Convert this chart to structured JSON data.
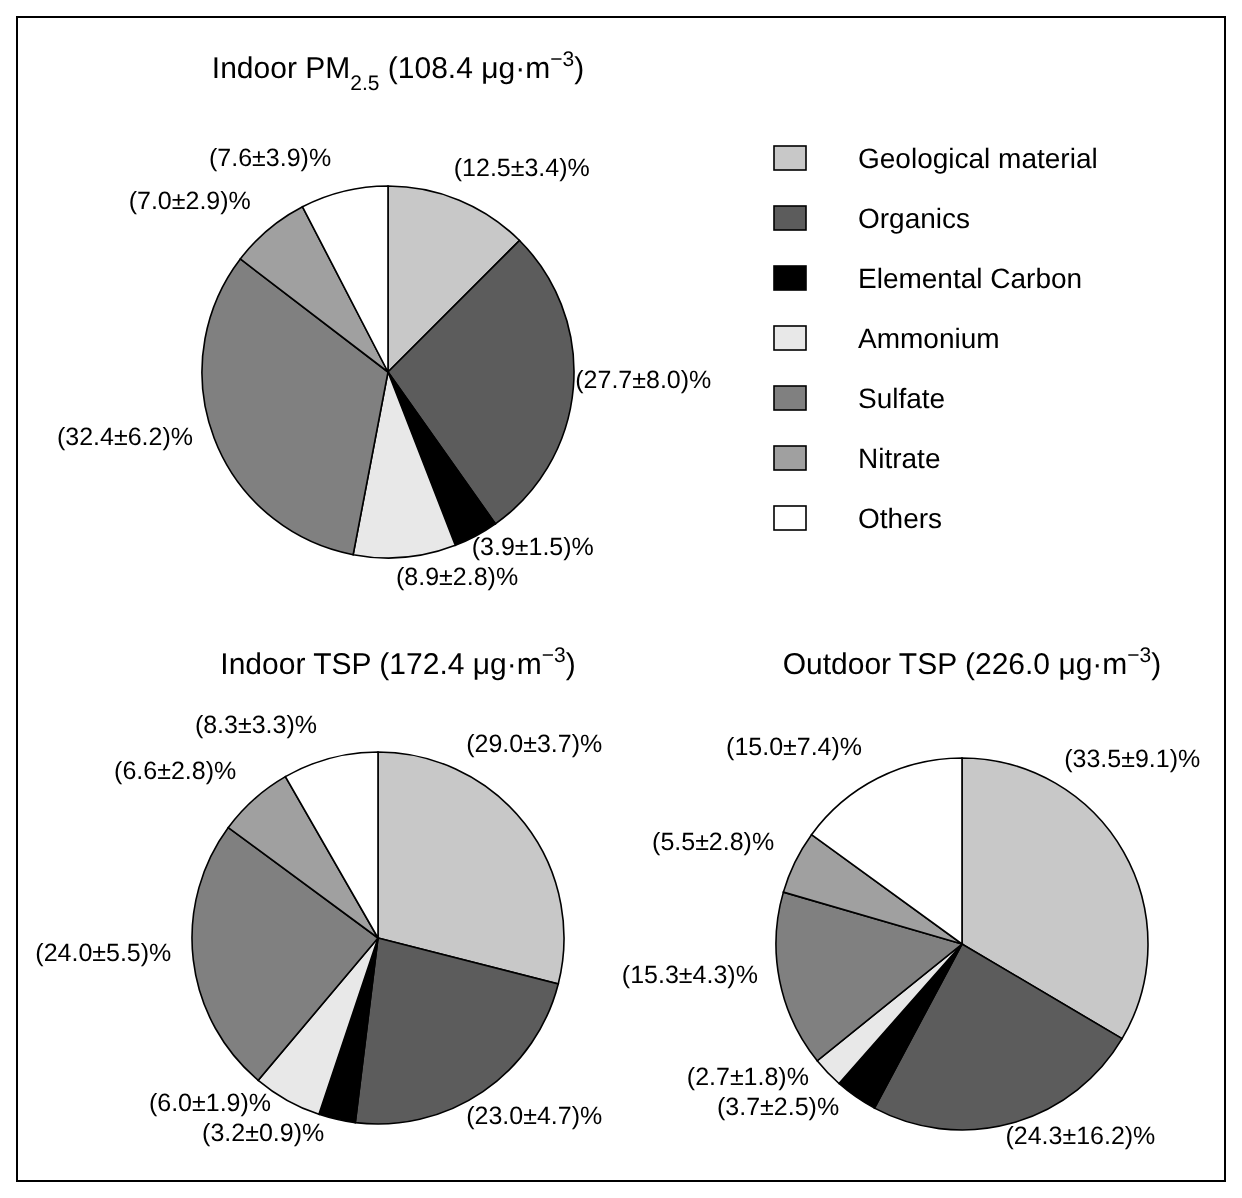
{
  "chart_data": [
    {
      "type": "pie",
      "title": "Indoor PM$_{2.5}$ (108.4 μg·m$^{−3}$)",
      "categories": [
        "Geological material",
        "Organics",
        "Elemental Carbon",
        "Ammonium",
        "Sulfate",
        "Nitrate",
        "Others"
      ],
      "values": [
        12.5,
        27.7,
        3.9,
        8.9,
        32.4,
        7.0,
        7.6
      ],
      "colors": [
        "#c8c8c8",
        "#5c5c5c",
        "#000000",
        "#e8e8e8",
        "#808080",
        "#a0a0a0",
        "#ffffff"
      ],
      "value_labels": [
        "(12.5±3.4)%",
        "(27.7±8.0)%",
        "(3.9±1.5)%",
        "(8.9±2.8)%",
        "(32.4±6.2)%",
        "(7.0±2.9)%",
        "(7.6±3.9)%"
      ],
      "legend": "right"
    },
    {
      "type": "pie",
      "title": "Indoor TSP (172.4 μg·m$^{−3}$)",
      "values": [
        29.0,
        23.0,
        3.2,
        6.0,
        24.0,
        6.6,
        8.3
      ],
      "colors": [
        "#c8c8c8",
        "#5c5c5c",
        "#000000",
        "#e8e8e8",
        "#808080",
        "#a0a0a0",
        "#ffffff"
      ],
      "value_labels": [
        "(29.0±3.7)%",
        "(23.0±4.7)%",
        "(3.2±0.9)%",
        "(6.0±1.9)%",
        "(24.0±5.5)%",
        "(6.6±2.8)%",
        "(8.3±3.3)%"
      ]
    },
    {
      "type": "pie",
      "title": "Outdoor TSP (226.0 μg·m$^{−3}$)",
      "values": [
        33.5,
        24.3,
        3.7,
        2.7,
        15.3,
        5.5,
        15.0
      ],
      "colors": [
        "#c8c8c8",
        "#5c5c5c",
        "#000000",
        "#e8e8e8",
        "#808080",
        "#a0a0a0",
        "#ffffff"
      ],
      "value_labels": [
        "(33.5±9.1)%",
        "(24.3±16.2)%",
        "(3.7±2.5)%",
        "(2.7±1.8)%",
        "(15.3±4.3)%",
        "(5.5±2.8)%",
        "(15.0±7.4)%"
      ]
    }
  ]
}
